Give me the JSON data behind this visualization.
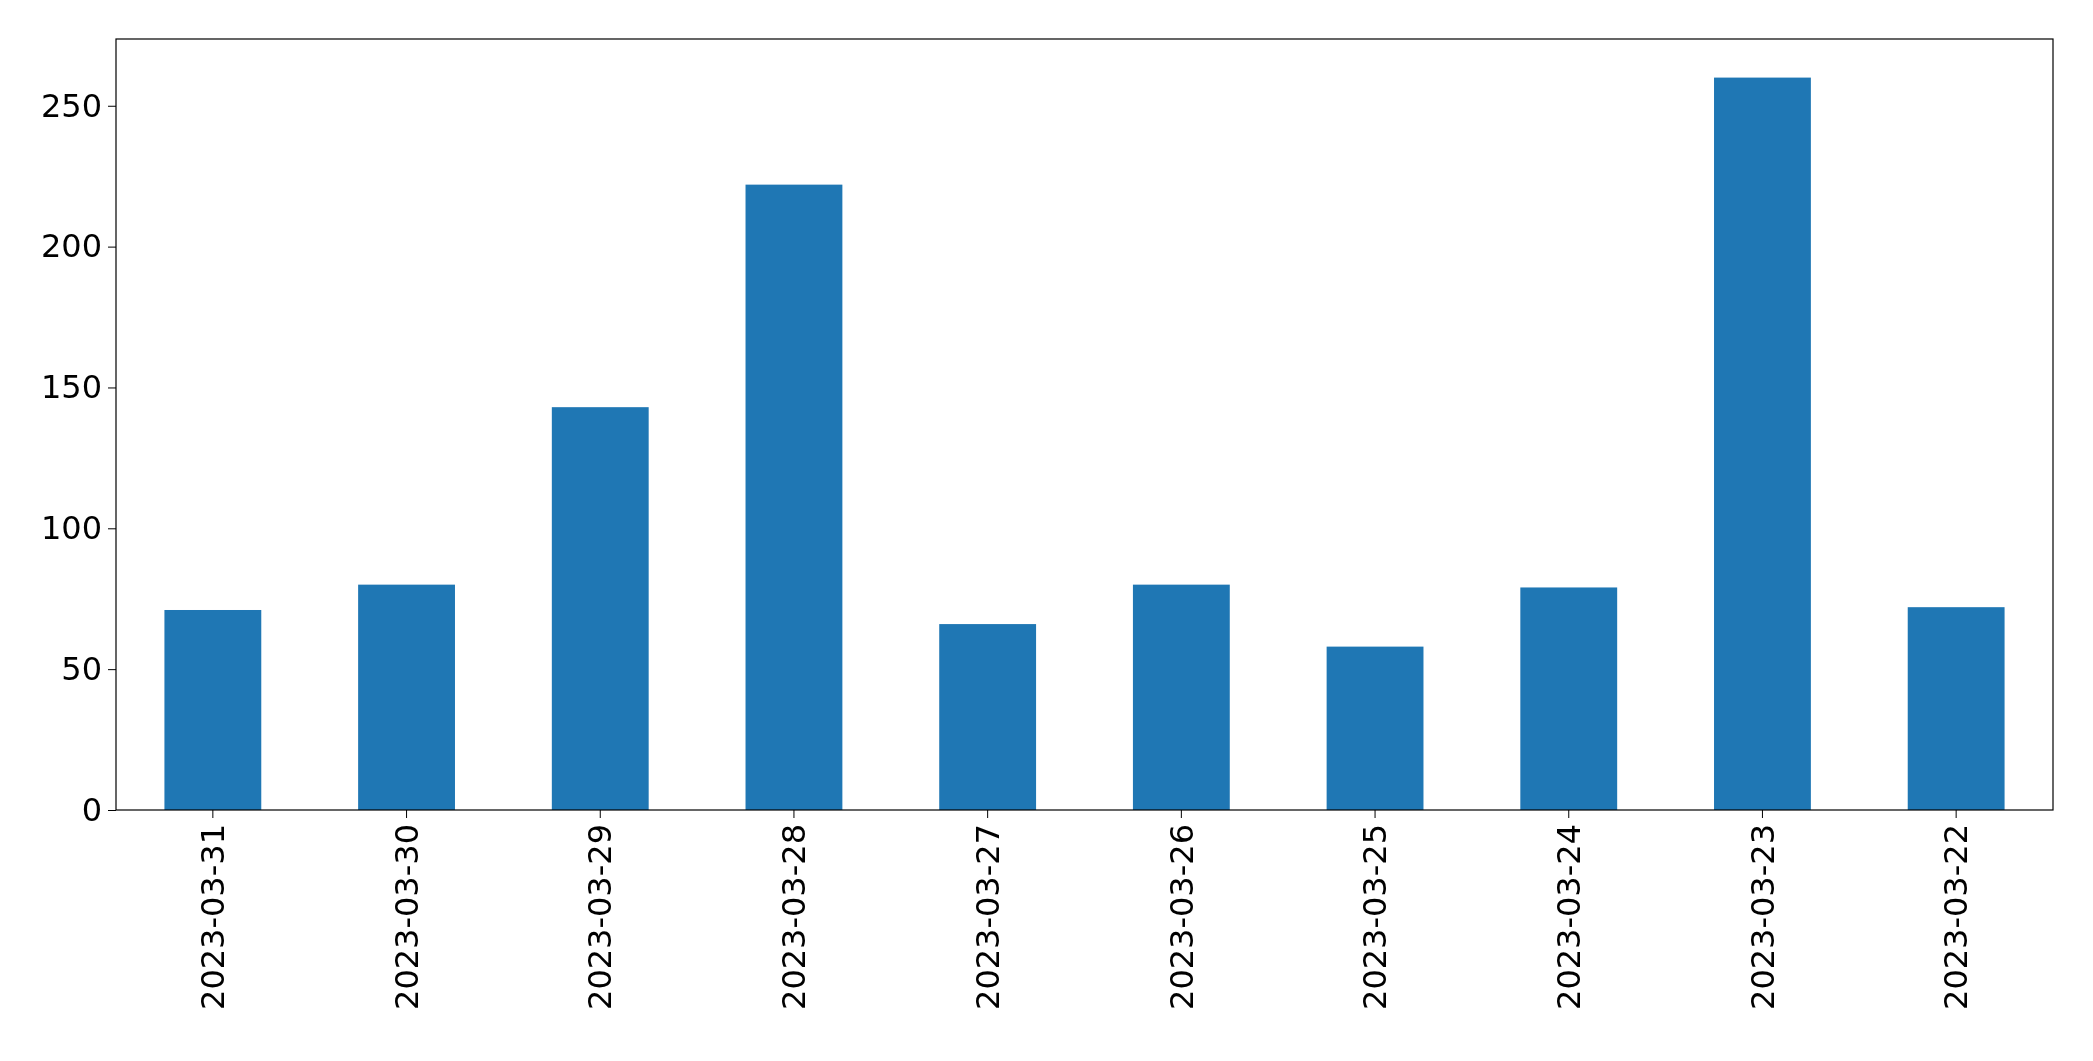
{
  "chart_data": {
    "type": "bar",
    "categories": [
      "2023-03-31",
      "2023-03-30",
      "2023-03-29",
      "2023-03-28",
      "2023-03-27",
      "2023-03-26",
      "2023-03-25",
      "2023-03-24",
      "2023-03-23",
      "2023-03-22"
    ],
    "values": [
      71,
      80,
      143,
      222,
      66,
      80,
      58,
      79,
      260,
      72
    ],
    "color": "#1f77b4",
    "ylim": [
      0,
      273.7
    ],
    "yticks": [
      0,
      50,
      100,
      150,
      200,
      250
    ],
    "grid": false
  }
}
